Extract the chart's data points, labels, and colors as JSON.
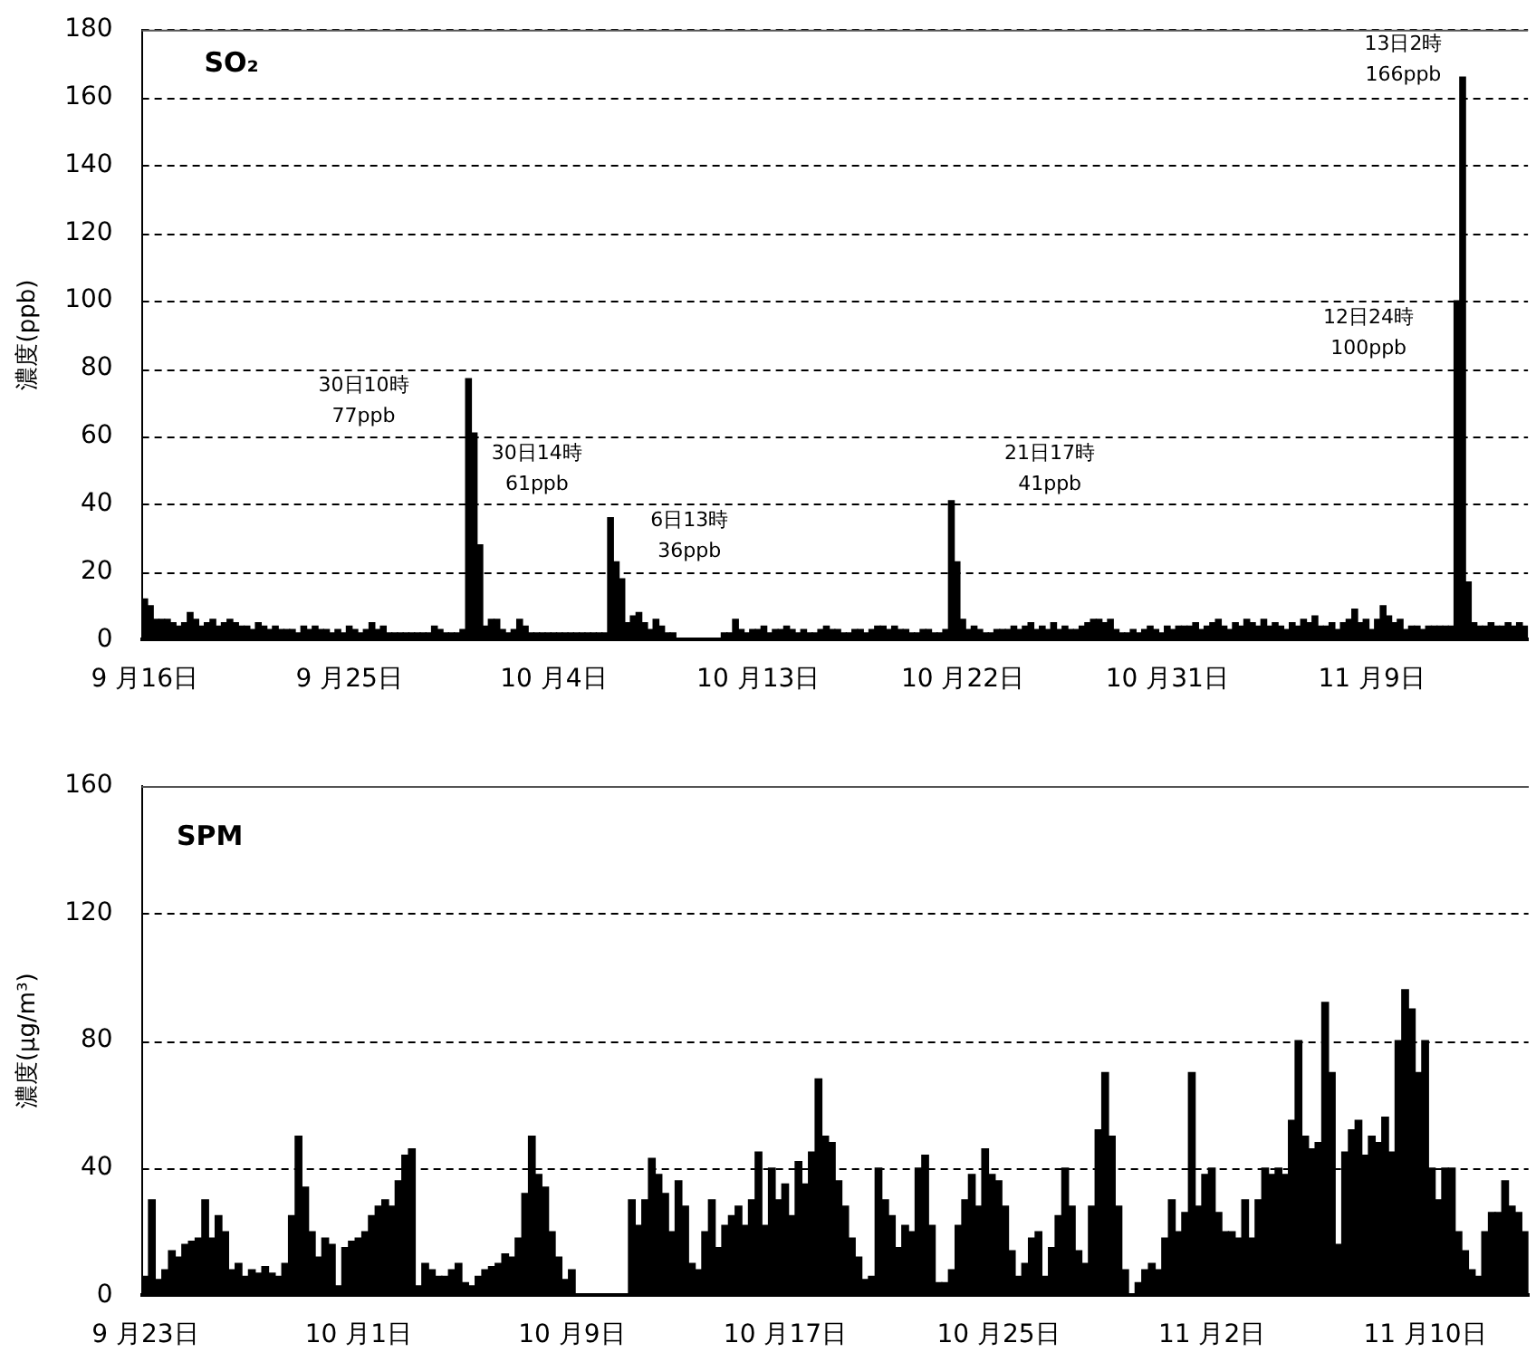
{
  "chart_data": [
    {
      "type": "bar",
      "title": "SO₂",
      "ylabel": "濃度(ppb)",
      "color": "#000000",
      "grid": "y",
      "ylim": [
        0,
        180
      ],
      "yticks": [
        0,
        20,
        40,
        60,
        80,
        100,
        120,
        140,
        160,
        180
      ],
      "annotations": [
        "30日10時\n77ppb",
        "30日14時\n61ppb",
        "6日13時\n36ppb",
        "21日17時\n41ppb",
        "12日24時\n100ppb",
        "13日2時\n166ppb"
      ],
      "categories": [
        "9 月16日",
        null,
        null,
        null,
        null,
        null,
        null,
        null,
        null,
        null,
        null,
        null,
        null,
        null,
        null,
        null,
        null,
        null,
        null,
        null,
        null,
        null,
        null,
        null,
        null,
        null,
        null,
        null,
        null,
        null,
        null,
        null,
        null,
        null,
        null,
        null,
        "9 月25日",
        null,
        null,
        null,
        null,
        null,
        null,
        null,
        null,
        null,
        null,
        null,
        null,
        null,
        null,
        null,
        null,
        null,
        null,
        null,
        null,
        null,
        null,
        null,
        null,
        null,
        null,
        null,
        null,
        null,
        null,
        null,
        null,
        null,
        null,
        null,
        "10 月4日",
        null,
        null,
        null,
        null,
        null,
        null,
        null,
        null,
        null,
        null,
        null,
        null,
        null,
        null,
        null,
        null,
        null,
        null,
        null,
        null,
        null,
        null,
        null,
        null,
        null,
        null,
        null,
        null,
        null,
        null,
        null,
        null,
        null,
        null,
        null,
        "10 月13日",
        null,
        null,
        null,
        null,
        null,
        null,
        null,
        null,
        null,
        null,
        null,
        null,
        null,
        null,
        null,
        null,
        null,
        null,
        null,
        null,
        null,
        null,
        null,
        null,
        null,
        null,
        null,
        null,
        null,
        null,
        null,
        null,
        null,
        null,
        null,
        "10 月22日",
        null,
        null,
        null,
        null,
        null,
        null,
        null,
        null,
        null,
        null,
        null,
        null,
        null,
        null,
        null,
        null,
        null,
        null,
        null,
        null,
        null,
        null,
        null,
        null,
        null,
        null,
        null,
        null,
        null,
        null,
        null,
        null,
        null,
        null,
        null,
        "10 月31日",
        null,
        null,
        null,
        null,
        null,
        null,
        null,
        null,
        null,
        null,
        null,
        null,
        null,
        null,
        null,
        null,
        null,
        null,
        null,
        null,
        null,
        null,
        null,
        null,
        null,
        null,
        null,
        null,
        null,
        null,
        null,
        null,
        null,
        null,
        null,
        "11 月9日",
        null,
        null,
        null,
        null,
        null,
        null,
        null,
        null,
        null,
        null,
        null,
        null,
        null,
        null,
        null,
        null,
        null,
        null,
        null,
        null,
        null,
        null,
        null,
        null,
        null,
        null,
        null
      ],
      "values": [
        12,
        10,
        6,
        6,
        6,
        5,
        4,
        5,
        8,
        6,
        4,
        5,
        6,
        4,
        5,
        6,
        5,
        4,
        4,
        3,
        5,
        4,
        3,
        4,
        3,
        3,
        3,
        2,
        4,
        3,
        4,
        3,
        3,
        2,
        3,
        2,
        4,
        3,
        2,
        3,
        5,
        3,
        4,
        2,
        2,
        2,
        2,
        2,
        2,
        2,
        2,
        4,
        3,
        2,
        2,
        2,
        3,
        77,
        61,
        28,
        4,
        6,
        6,
        3,
        2,
        3,
        6,
        4,
        2,
        2,
        2,
        2,
        2,
        2,
        2,
        2,
        2,
        2,
        2,
        2,
        2,
        2,
        36,
        23,
        18,
        5,
        7,
        8,
        5,
        3,
        6,
        4,
        2,
        2,
        null,
        null,
        null,
        null,
        null,
        null,
        null,
        null,
        2,
        2,
        6,
        3,
        2,
        3,
        3,
        4,
        2,
        3,
        3,
        4,
        3,
        2,
        3,
        2,
        2,
        3,
        4,
        3,
        3,
        2,
        2,
        3,
        3,
        2,
        3,
        4,
        4,
        3,
        4,
        3,
        3,
        2,
        2,
        3,
        3,
        2,
        2,
        3,
        41,
        23,
        6,
        3,
        4,
        3,
        2,
        2,
        3,
        3,
        3,
        4,
        3,
        4,
        5,
        3,
        4,
        3,
        5,
        3,
        4,
        3,
        3,
        4,
        5,
        6,
        6,
        5,
        6,
        3,
        2,
        2,
        3,
        2,
        3,
        4,
        3,
        2,
        4,
        3,
        4,
        4,
        4,
        5,
        3,
        4,
        5,
        6,
        4,
        3,
        5,
        4,
        6,
        5,
        4,
        6,
        4,
        5,
        4,
        3,
        5,
        4,
        6,
        5,
        7,
        4,
        4,
        5,
        3,
        5,
        6,
        9,
        5,
        6,
        3,
        6,
        10,
        7,
        5,
        6,
        3,
        4,
        4,
        3,
        4,
        4,
        4,
        4,
        4,
        100,
        166,
        17,
        5,
        4,
        4,
        5,
        4,
        4,
        5,
        4,
        5,
        4
      ]
    },
    {
      "type": "bar",
      "title": "SPM",
      "ylabel": "濃度(μg/m³)",
      "color": "#000000",
      "grid": "y",
      "ylim": [
        0,
        160
      ],
      "yticks": [
        0,
        40,
        80,
        120,
        160
      ],
      "categories": [
        "9 月23日",
        null,
        null,
        null,
        null,
        null,
        null,
        null,
        null,
        null,
        null,
        null,
        null,
        null,
        null,
        null,
        null,
        null,
        null,
        null,
        null,
        null,
        null,
        null,
        null,
        null,
        null,
        null,
        null,
        null,
        null,
        null,
        "10 月1日",
        null,
        null,
        null,
        null,
        null,
        null,
        null,
        null,
        null,
        null,
        null,
        null,
        null,
        null,
        null,
        null,
        null,
        null,
        null,
        null,
        null,
        null,
        null,
        null,
        null,
        null,
        null,
        null,
        null,
        null,
        null,
        "10 月9日",
        null,
        null,
        null,
        null,
        null,
        null,
        null,
        null,
        null,
        null,
        null,
        null,
        null,
        null,
        null,
        null,
        null,
        null,
        null,
        null,
        null,
        null,
        null,
        null,
        null,
        null,
        null,
        null,
        null,
        null,
        null,
        "10 月17日",
        null,
        null,
        null,
        null,
        null,
        null,
        null,
        null,
        null,
        null,
        null,
        null,
        null,
        null,
        null,
        null,
        null,
        null,
        null,
        null,
        null,
        null,
        null,
        null,
        null,
        null,
        null,
        null,
        null,
        null,
        null,
        "10 月25日",
        null,
        null,
        null,
        null,
        null,
        null,
        null,
        null,
        null,
        null,
        null,
        null,
        null,
        null,
        null,
        null,
        null,
        null,
        null,
        null,
        null,
        null,
        null,
        null,
        null,
        null,
        null,
        null,
        null,
        null,
        null,
        "11 月2日",
        null,
        null,
        null,
        null,
        null,
        null,
        null,
        null,
        null,
        null,
        null,
        null,
        null,
        null,
        null,
        null,
        null,
        null,
        null,
        null,
        null,
        null,
        null,
        null,
        null,
        null,
        null,
        null,
        null,
        null,
        null,
        "11 月10日",
        null,
        null,
        null,
        null,
        null,
        null,
        null,
        null,
        null,
        null,
        null,
        null,
        null,
        null,
        null
      ],
      "values": [
        6,
        30,
        5,
        8,
        14,
        12,
        16,
        17,
        18,
        30,
        18,
        25,
        20,
        8,
        10,
        6,
        8,
        7,
        9,
        7,
        6,
        10,
        25,
        50,
        34,
        20,
        12,
        18,
        16,
        3,
        15,
        17,
        18,
        20,
        25,
        28,
        30,
        28,
        36,
        44,
        46,
        3,
        10,
        8,
        6,
        6,
        8,
        10,
        4,
        3,
        6,
        8,
        9,
        10,
        13,
        12,
        18,
        32,
        50,
        38,
        34,
        20,
        12,
        5,
        8,
        null,
        null,
        null,
        null,
        null,
        null,
        null,
        null,
        30,
        22,
        30,
        43,
        38,
        32,
        20,
        36,
        28,
        10,
        8,
        20,
        30,
        15,
        22,
        25,
        28,
        22,
        30,
        45,
        22,
        40,
        30,
        35,
        25,
        42,
        35,
        45,
        68,
        50,
        48,
        36,
        28,
        18,
        12,
        5,
        6,
        40,
        30,
        25,
        15,
        22,
        20,
        40,
        44,
        22,
        4,
        4,
        8,
        22,
        30,
        38,
        28,
        46,
        38,
        36,
        28,
        14,
        6,
        10,
        18,
        20,
        6,
        15,
        25,
        40,
        28,
        14,
        10,
        28,
        52,
        70,
        50,
        28,
        8,
        0,
        4,
        8,
        10,
        8,
        18,
        30,
        20,
        26,
        70,
        28,
        38,
        40,
        26,
        20,
        20,
        18,
        30,
        18,
        30,
        40,
        38,
        40,
        38,
        55,
        80,
        50,
        46,
        48,
        92,
        70,
        16,
        45,
        52,
        55,
        44,
        50,
        48,
        56,
        45,
        80,
        96,
        90,
        70,
        80,
        40,
        30,
        40,
        40,
        20,
        14,
        8,
        6,
        20,
        26,
        26,
        36,
        28,
        26,
        20
      ]
    }
  ]
}
